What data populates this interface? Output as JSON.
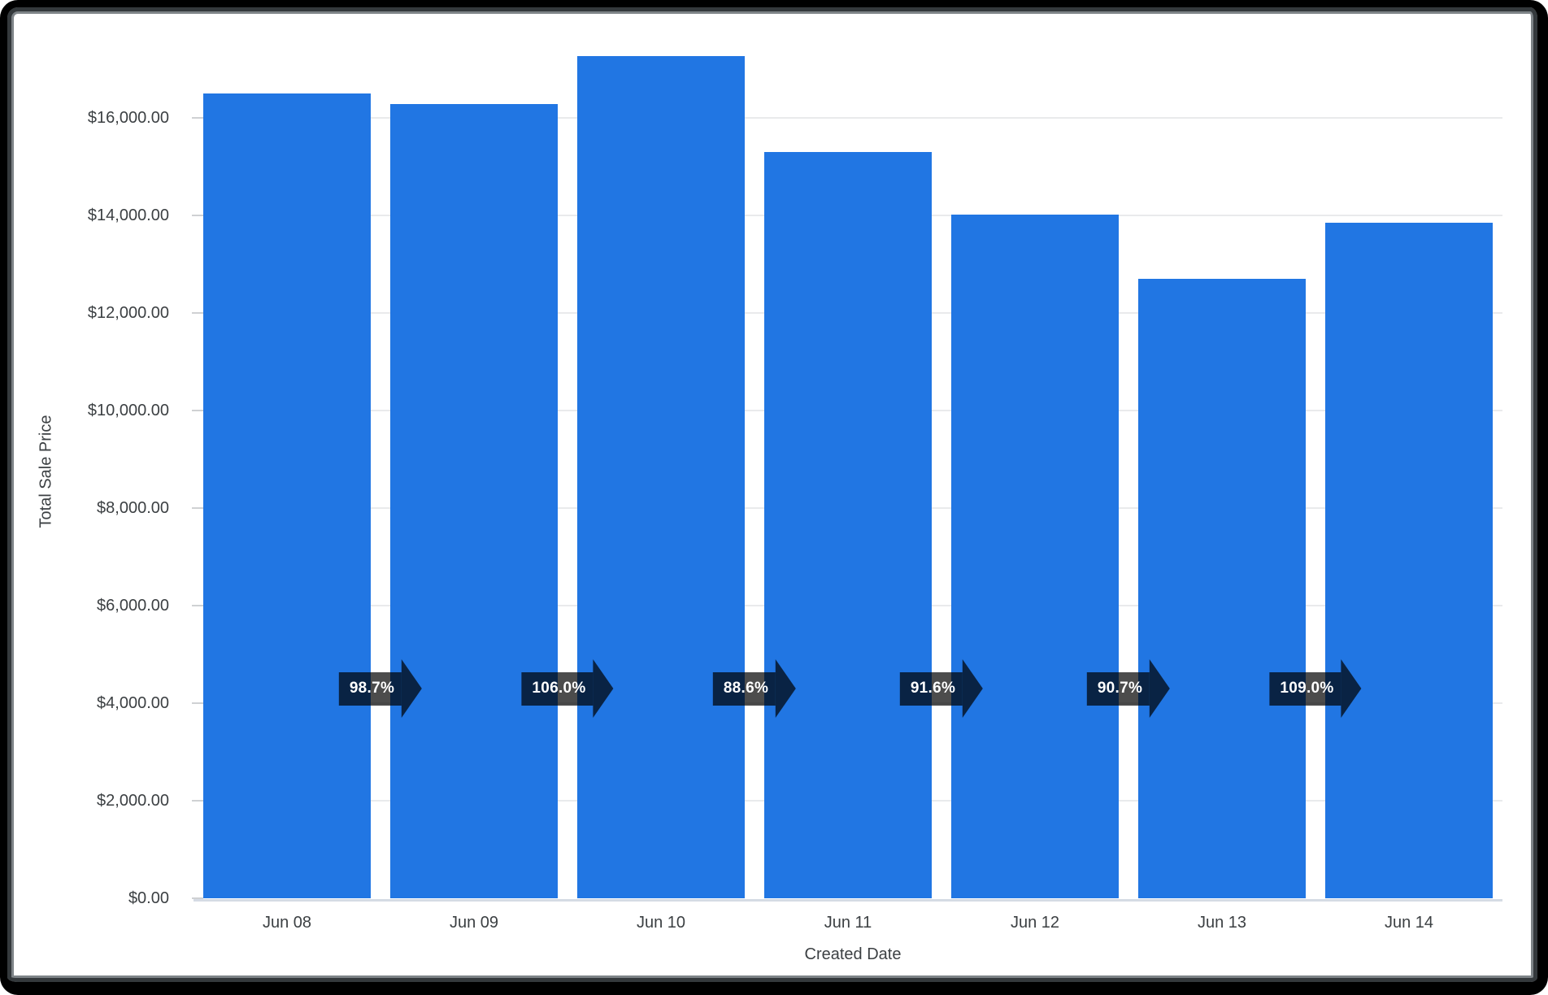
{
  "chart_data": {
    "type": "bar",
    "title": "",
    "xlabel": "Created Date",
    "ylabel": "Total Sale Price",
    "categories": [
      "Jun 08",
      "Jun 09",
      "Jun 10",
      "Jun 11",
      "Jun 12",
      "Jun 13",
      "Jun 14"
    ],
    "values": [
      16500,
      16285,
      17262,
      15294,
      14009,
      12706,
      13850
    ],
    "series": [
      {
        "name": "Total Sale Price",
        "values": [
          16500,
          16285,
          17262,
          15294,
          14009,
          12706,
          13850
        ]
      }
    ],
    "ratio_badges": [
      "98.7%",
      "106.0%",
      "88.6%",
      "91.6%",
      "90.7%",
      "109.0%"
    ],
    "yticks": [
      "$0.00",
      "$2,000.00",
      "$4,000.00",
      "$6,000.00",
      "$8,000.00",
      "$10,000.00",
      "$12,000.00",
      "$14,000.00",
      "$16,000.00"
    ],
    "ytick_values": [
      0,
      2000,
      4000,
      6000,
      8000,
      10000,
      12000,
      14000,
      16000
    ],
    "ylim": [
      0,
      17750
    ],
    "grid": true,
    "legend": "none",
    "colors": {
      "bar": "#2176e3",
      "badge_bg": "rgba(0,0,0,0.70)",
      "badge_text": "#ffffff",
      "axis_text": "#3c4043",
      "gridline": "#e9eaec",
      "baseline": "#d5dbe4",
      "tick_dash": "#cfd1d3"
    }
  }
}
